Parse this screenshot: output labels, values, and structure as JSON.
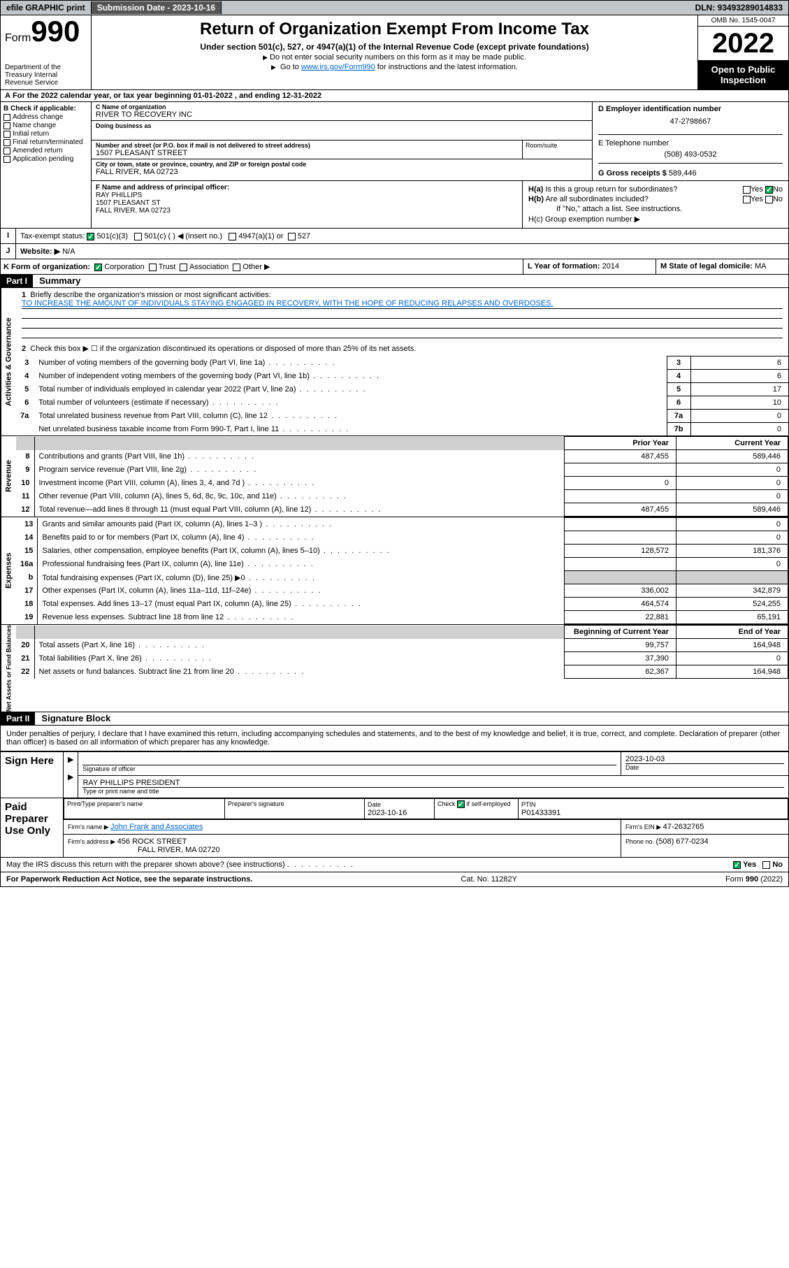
{
  "topbar": {
    "efile": "efile GRAPHIC print",
    "subdate_lbl": "Submission Date - ",
    "subdate": "2023-10-16",
    "dln_lbl": "DLN: ",
    "dln": "93493289014833"
  },
  "header": {
    "form_prefix": "Form",
    "form_num": "990",
    "dept": "Department of the Treasury\nInternal Revenue Service",
    "title": "Return of Organization Exempt From Income Tax",
    "sub1": "Under section 501(c), 527, or 4947(a)(1) of the Internal Revenue Code (except private foundations)",
    "sub2": "Do not enter social security numbers on this form as it may be made public.",
    "sub3_pre": "Go to ",
    "sub3_link": "www.irs.gov/Form990",
    "sub3_post": " for instructions and the latest information.",
    "omb": "OMB No. 1545-0047",
    "year": "2022",
    "open": "Open to Public Inspection"
  },
  "periodA": {
    "text_pre": "For the 2022 calendar year, or tax year beginning ",
    "begin": "01-01-2022",
    "mid": " , and ending ",
    "end": "12-31-2022"
  },
  "B": {
    "hdr": "B Check if applicable:",
    "opts": [
      "Address change",
      "Name change",
      "Initial return",
      "Final return/terminated",
      "Amended return",
      "Application pending"
    ]
  },
  "C": {
    "name_lbl": "C Name of organization",
    "name": "RIVER TO RECOVERY INC",
    "dba_lbl": "Doing business as",
    "addr_lbl": "Number and street (or P.O. box if mail is not delivered to street address)",
    "addr": "1507 PLEASANT STREET",
    "room_lbl": "Room/suite",
    "city_lbl": "City or town, state or province, country, and ZIP or foreign postal code",
    "city": "FALL RIVER, MA  02723"
  },
  "D": {
    "lbl": "D Employer identification number",
    "val": "47-2798667"
  },
  "E": {
    "lbl": "E Telephone number",
    "val": "(508) 493-0532"
  },
  "G": {
    "lbl": "G Gross receipts $ ",
    "val": "589,446"
  },
  "F": {
    "lbl": "F Name and address of principal officer:",
    "name": "RAY PHILLIPS",
    "addr1": "1507 PLEASANT ST",
    "addr2": "FALL RIVER, MA  02723"
  },
  "H": {
    "a_lbl": "H(a)  Is this a group return for subordinates?",
    "a_yes": "Yes",
    "a_no": "No",
    "b_lbl": "H(b)  Are all subordinates included?",
    "b_note": "If \"No,\" attach a list. See instructions.",
    "c_lbl": "H(c)  Group exemption number ▶"
  },
  "I": {
    "lbl": "Tax-exempt status:",
    "opts": [
      "501(c)(3)",
      "501(c) (  ) ◀ (insert no.)",
      "4947(a)(1) or",
      "527"
    ]
  },
  "J": {
    "lbl": "Website: ▶",
    "val": "N/A"
  },
  "K": {
    "lbl": "K Form of organization:",
    "opts": [
      "Corporation",
      "Trust",
      "Association",
      "Other ▶"
    ]
  },
  "L": {
    "lbl": "L Year of formation: ",
    "val": "2014"
  },
  "M": {
    "lbl": "M State of legal domicile: ",
    "val": "MA"
  },
  "partI": {
    "hdr": "Part I",
    "title": "Summary",
    "vlabels": [
      "Activities & Governance",
      "Revenue",
      "Expenses",
      "Net Assets or Fund Balances"
    ],
    "q1": "Briefly describe the organization's mission or most significant activities:",
    "mission": "TO INCREASE THE AMOUNT OF INDIVIDUALS STAYING ENGAGED IN RECOVERY, WITH THE HOPE OF REDUCING RELAPSES AND OVERDOSES.",
    "q2": "Check this box ▶ ☐ if the organization discontinued its operations or disposed of more than 25% of its net assets.",
    "gov_rows": [
      {
        "n": "3",
        "t": "Number of voting members of the governing body (Part VI, line 1a)",
        "box": "3",
        "v": "6"
      },
      {
        "n": "4",
        "t": "Number of independent voting members of the governing body (Part VI, line 1b)",
        "box": "4",
        "v": "6"
      },
      {
        "n": "5",
        "t": "Total number of individuals employed in calendar year 2022 (Part V, line 2a)",
        "box": "5",
        "v": "17"
      },
      {
        "n": "6",
        "t": "Total number of volunteers (estimate if necessary)",
        "box": "6",
        "v": "10"
      },
      {
        "n": "7a",
        "t": "Total unrelated business revenue from Part VIII, column (C), line 12",
        "box": "7a",
        "v": "0"
      },
      {
        "n": "",
        "t": "Net unrelated business taxable income from Form 990-T, Part I, line 11",
        "box": "7b",
        "v": "0"
      }
    ],
    "py_hdr": "Prior Year",
    "cy_hdr": "Current Year",
    "rev_rows": [
      {
        "n": "8",
        "t": "Contributions and grants (Part VIII, line 1h)",
        "py": "487,455",
        "cy": "589,446"
      },
      {
        "n": "9",
        "t": "Program service revenue (Part VIII, line 2g)",
        "py": "",
        "cy": "0"
      },
      {
        "n": "10",
        "t": "Investment income (Part VIII, column (A), lines 3, 4, and 7d )",
        "py": "0",
        "cy": "0"
      },
      {
        "n": "11",
        "t": "Other revenue (Part VIII, column (A), lines 5, 6d, 8c, 9c, 10c, and 11e)",
        "py": "",
        "cy": "0"
      },
      {
        "n": "12",
        "t": "Total revenue—add lines 8 through 11 (must equal Part VIII, column (A), line 12)",
        "py": "487,455",
        "cy": "589,446"
      }
    ],
    "exp_rows": [
      {
        "n": "13",
        "t": "Grants and similar amounts paid (Part IX, column (A), lines 1–3 )",
        "py": "",
        "cy": "0"
      },
      {
        "n": "14",
        "t": "Benefits paid to or for members (Part IX, column (A), line 4)",
        "py": "",
        "cy": "0"
      },
      {
        "n": "15",
        "t": "Salaries, other compensation, employee benefits (Part IX, column (A), lines 5–10)",
        "py": "128,572",
        "cy": "181,376"
      },
      {
        "n": "16a",
        "t": "Professional fundraising fees (Part IX, column (A), line 11e)",
        "py": "",
        "cy": "0"
      },
      {
        "n": "b",
        "t": "Total fundraising expenses (Part IX, column (D), line 25) ▶0",
        "py": "GREY",
        "cy": "GREY"
      },
      {
        "n": "17",
        "t": "Other expenses (Part IX, column (A), lines 11a–11d, 11f–24e)",
        "py": "336,002",
        "cy": "342,879"
      },
      {
        "n": "18",
        "t": "Total expenses. Add lines 13–17 (must equal Part IX, column (A), line 25)",
        "py": "464,574",
        "cy": "524,255"
      },
      {
        "n": "19",
        "t": "Revenue less expenses. Subtract line 18 from line 12",
        "py": "22,881",
        "cy": "65,191"
      }
    ],
    "na_hdr_py": "Beginning of Current Year",
    "na_hdr_cy": "End of Year",
    "na_rows": [
      {
        "n": "20",
        "t": "Total assets (Part X, line 16)",
        "py": "99,757",
        "cy": "164,948"
      },
      {
        "n": "21",
        "t": "Total liabilities (Part X, line 26)",
        "py": "37,390",
        "cy": "0"
      },
      {
        "n": "22",
        "t": "Net assets or fund balances. Subtract line 21 from line 20",
        "py": "62,367",
        "cy": "164,948"
      }
    ]
  },
  "partII": {
    "hdr": "Part II",
    "title": "Signature Block",
    "declare": "Under penalties of perjury, I declare that I have examined this return, including accompanying schedules and statements, and to the best of my knowledge and belief, it is true, correct, and complete. Declaration of preparer (other than officer) is based on all information of which preparer has any knowledge.",
    "sign_here": "Sign Here",
    "sig_lbl": "Signature of officer",
    "sig_date": "2023-10-03",
    "date_lbl": "Date",
    "officer": "RAY PHILLIPS  PRESIDENT",
    "officer_lbl": "Type or print name and title",
    "paid": "Paid Preparer Use Only",
    "ppu": {
      "name_lbl": "Print/Type preparer's name",
      "sig_lbl": "Preparer's signature",
      "date_lbl": "Date",
      "date": "2023-10-16",
      "check_lbl": "Check ☑ if self-employed",
      "ptin_lbl": "PTIN",
      "ptin": "P01433391",
      "firm_name_lbl": "Firm's name      ▶ ",
      "firm_name": "John Frank and Associates",
      "firm_ein_lbl": "Firm's EIN ▶ ",
      "firm_ein": "47-2632765",
      "firm_addr_lbl": "Firm's address ▶ ",
      "firm_addr": "456 ROCK STREET",
      "firm_city": "FALL RIVER, MA  02720",
      "phone_lbl": "Phone no. ",
      "phone": "(508) 677-0234"
    },
    "discuss": "May the IRS discuss this return with the preparer shown above? (see instructions)",
    "yes": "Yes",
    "no": "No"
  },
  "footer": {
    "pra": "For Paperwork Reduction Act Notice, see the separate instructions.",
    "cat": "Cat. No. 11282Y",
    "formv": "Form 990 (2022)"
  },
  "colors": {
    "topbar_bg": "#bfc5c9",
    "link": "#0066cc",
    "check_green": "#00aa55"
  }
}
